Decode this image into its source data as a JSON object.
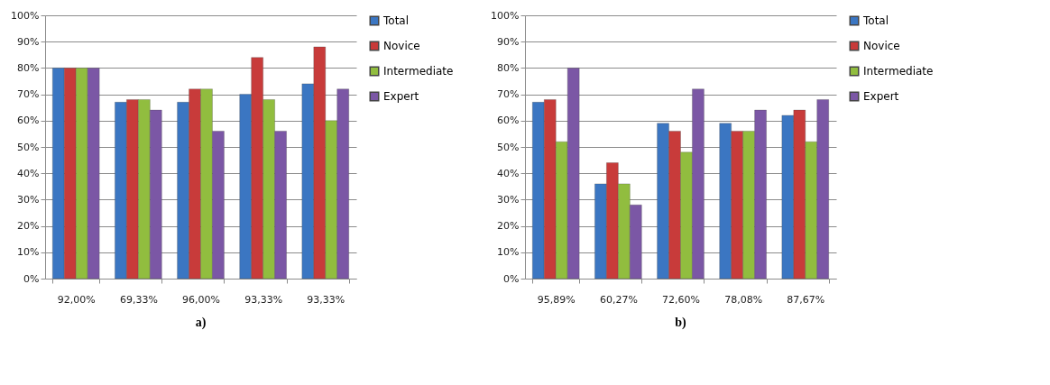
{
  "chart_data": [
    {
      "type": "bar",
      "title": "a)",
      "categories": [
        "92,00%",
        "69,33%",
        "96,00%",
        "93,33%",
        "93,33%"
      ],
      "series": [
        {
          "name": "Total",
          "color": "#3b76c2",
          "values": [
            80,
            67,
            67,
            70,
            74
          ]
        },
        {
          "name": "Novice",
          "color": "#c83b3a",
          "values": [
            80,
            68,
            72,
            84,
            88
          ]
        },
        {
          "name": "Intermediate",
          "color": "#91bd3f",
          "values": [
            80,
            68,
            72,
            68,
            60
          ]
        },
        {
          "name": "Expert",
          "color": "#7b57a5",
          "values": [
            80,
            64,
            56,
            56,
            72
          ]
        }
      ],
      "ylim": [
        0,
        100
      ],
      "yticks": [
        {
          "value": 0,
          "label": "0%"
        },
        {
          "value": 10,
          "label": "10%"
        },
        {
          "value": 20,
          "label": "20%"
        },
        {
          "value": 30,
          "label": "30%"
        },
        {
          "value": 40,
          "label": "40%"
        },
        {
          "value": 50,
          "label": "50%"
        },
        {
          "value": 60,
          "label": "60%"
        },
        {
          "value": 70,
          "label": "70%"
        },
        {
          "value": 80,
          "label": "80%"
        },
        {
          "value": 90,
          "label": "90%"
        },
        {
          "value": 100,
          "label": "100%"
        }
      ],
      "grid": "y",
      "legend": "right"
    },
    {
      "type": "bar",
      "title": "b)",
      "categories": [
        "95,89%",
        "60,27%",
        "72,60%",
        "78,08%",
        "87,67%"
      ],
      "series": [
        {
          "name": "Total",
          "color": "#3b76c2",
          "values": [
            67,
            36,
            59,
            59,
            62
          ]
        },
        {
          "name": "Novice",
          "color": "#c83b3a",
          "values": [
            68,
            44,
            56,
            56,
            64
          ]
        },
        {
          "name": "Intermediate",
          "color": "#91bd3f",
          "values": [
            52,
            36,
            48,
            56,
            52
          ]
        },
        {
          "name": "Expert",
          "color": "#7b57a5",
          "values": [
            80,
            28,
            72,
            64,
            68
          ]
        }
      ],
      "ylim": [
        0,
        100
      ],
      "yticks": [
        {
          "value": 0,
          "label": "0%"
        },
        {
          "value": 10,
          "label": "10%"
        },
        {
          "value": 20,
          "label": "20%"
        },
        {
          "value": 30,
          "label": "30%"
        },
        {
          "value": 40,
          "label": "40%"
        },
        {
          "value": 50,
          "label": "50%"
        },
        {
          "value": 60,
          "label": "60%"
        },
        {
          "value": 70,
          "label": "70%"
        },
        {
          "value": 80,
          "label": "80%"
        },
        {
          "value": 90,
          "label": "90%"
        },
        {
          "value": 100,
          "label": "100%"
        }
      ],
      "grid": "y",
      "legend": "right"
    }
  ]
}
